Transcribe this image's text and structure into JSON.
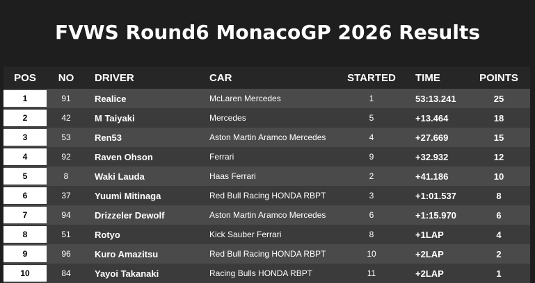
{
  "title": "FVWS Round6 MonacoGP 2026 Results",
  "table": {
    "header": [
      "POS",
      "NO",
      "DRIVER",
      "CAR",
      "STARTED",
      "TIME",
      "POINTS"
    ],
    "rows": [
      [
        "1",
        "91",
        "Realice",
        "McLaren Mercedes",
        "1",
        "53:13.241",
        "25"
      ],
      [
        "2",
        "42",
        "M Taiyaki",
        "Mercedes",
        "5",
        "+13.464",
        "18"
      ],
      [
        "3",
        "53",
        "Ren53",
        "Aston Martin Aramco Mercedes",
        "4",
        "+27.669",
        "15"
      ],
      [
        "4",
        "92",
        "Raven Ohson",
        "Ferrari",
        "9",
        "+32.932",
        "12"
      ],
      [
        "5",
        "8",
        "Waki Lauda",
        "Haas Ferrari",
        "2",
        "+41.186",
        "10"
      ],
      [
        "6",
        "37",
        "Yuumi Mitinaga",
        "Red Bull Racing HONDA RBPT",
        "3",
        "+1:01.537",
        "8"
      ],
      [
        "7",
        "94",
        "Drizzeler Dewolf",
        "Aston Martin Aramco Mercedes",
        "6",
        "+1:15.970",
        "6"
      ],
      [
        "8",
        "51",
        "Rotyo",
        "Kick Sauber Ferrari",
        "8",
        "+1LAP",
        "4"
      ],
      [
        "9",
        "96",
        "Kuro Amazitsu",
        "Red Bull Racing HONDA RBPT",
        "10",
        "+2LAP",
        "2"
      ],
      [
        "10",
        "84",
        "Yayoi Takanaki",
        "Racing Bulls HONDA RBPT",
        "11",
        "+2LAP",
        "1"
      ]
    ]
  }
}
